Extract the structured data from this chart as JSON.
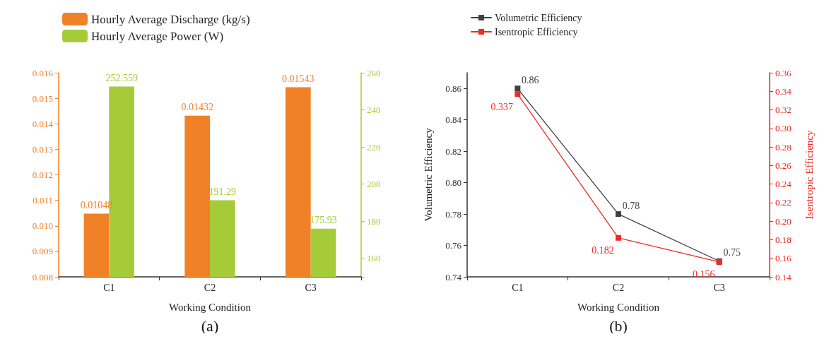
{
  "chart_data": [
    {
      "type": "bar",
      "categories": [
        "C1",
        "C2",
        "C3"
      ],
      "xlabel": "Working Condition",
      "legend": "top left",
      "data_labels": true,
      "grid": false,
      "series": [
        {
          "name": "Hourly Average Discharge (kg/s)",
          "color": "#f08127",
          "values": [
            0.01048,
            0.01432,
            0.01543
          ]
        },
        {
          "name": "Hourly Average Power (W)",
          "color": "#a5cc38",
          "values": [
            252.559,
            191.29,
            175.93
          ],
          "axis": "y2"
        }
      ],
      "ylim": [
        0.008,
        0.016
      ],
      "yticks": [
        {
          "value": 0.008,
          "label": "0.008"
        },
        0.009,
        {
          "value": 0.01,
          "label": "0.010"
        },
        0.011,
        0.012,
        0.013,
        0.014,
        0.015,
        0.016
      ],
      "y2lim": [
        150,
        260
      ],
      "y2ticks": [
        {
          "value": 150,
          "label": null
        },
        160,
        180,
        200,
        220,
        240,
        260
      ],
      "annotations": [
        "(a)"
      ]
    },
    {
      "type": "line",
      "categories": [
        "C1",
        "C2",
        "C3"
      ],
      "xlabel": "Working Condition",
      "ylabel": "Volumetric Efficiency",
      "y2label": "Isentropic Efficiency",
      "legend": "top left",
      "data_labels": true,
      "grid": false,
      "marker": "square",
      "line_style": "solid",
      "series": [
        {
          "name": "Volumetric Efficiency",
          "color": "#404040",
          "values": [
            0.86,
            0.78,
            0.75
          ]
        },
        {
          "name": "Isentropic Efficiency",
          "color": "#ee2a24",
          "values": [
            0.337,
            0.182,
            0.156
          ],
          "axis": "y2"
        }
      ],
      "ylim": [
        0.74,
        0.87
      ],
      "yticks": [
        0.74,
        0.76,
        0.78,
        {
          "value": 0.8,
          "label": "0.80"
        },
        0.82,
        0.84,
        0.86
      ],
      "y2lim": [
        0.14,
        0.36
      ],
      "y2ticks": [
        0.14,
        0.16,
        0.18,
        {
          "value": 0.2,
          "label": "0.20"
        },
        0.22,
        0.24,
        0.26,
        0.28,
        {
          "value": 0.3,
          "label": "0.30"
        },
        0.32,
        0.34,
        0.36
      ],
      "annotations": [
        "(b)"
      ]
    }
  ]
}
